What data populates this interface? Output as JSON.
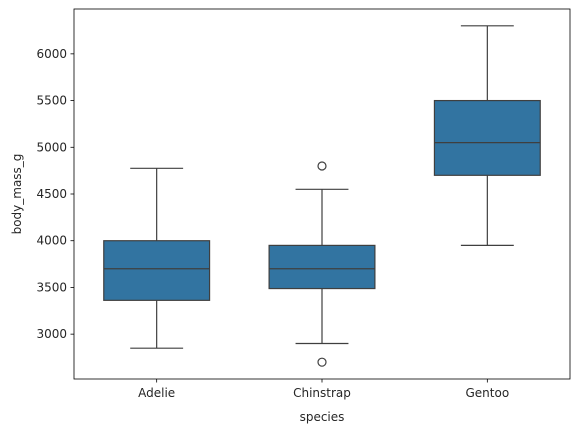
{
  "chart_data": {
    "type": "box",
    "xlabel": "species",
    "ylabel": "body_mass_g",
    "ylim": [
      2520,
      6480
    ],
    "yticks": [
      3000,
      3500,
      4000,
      4500,
      5000,
      5500,
      6000
    ],
    "yticklabels": [
      "3000",
      "3500",
      "4000",
      "4500",
      "5000",
      "5500",
      "6000"
    ],
    "categories": [
      "Adelie",
      "Chinstrap",
      "Gentoo"
    ],
    "box_color": "#3274a1",
    "line_color": "#3f3f3f",
    "grid": false,
    "boxes": [
      {
        "category": "Adelie",
        "whislo": 2850,
        "q1": 3362,
        "med": 3700,
        "q3": 4000,
        "whishi": 4775,
        "fliers": []
      },
      {
        "category": "Chinstrap",
        "whislo": 2900,
        "q1": 3488,
        "med": 3700,
        "q3": 3950,
        "whishi": 4550,
        "fliers": [
          2700,
          4800
        ]
      },
      {
        "category": "Gentoo",
        "whislo": 3950,
        "q1": 4700,
        "med": 5050,
        "q3": 5500,
        "whishi": 6300,
        "fliers": []
      }
    ]
  }
}
